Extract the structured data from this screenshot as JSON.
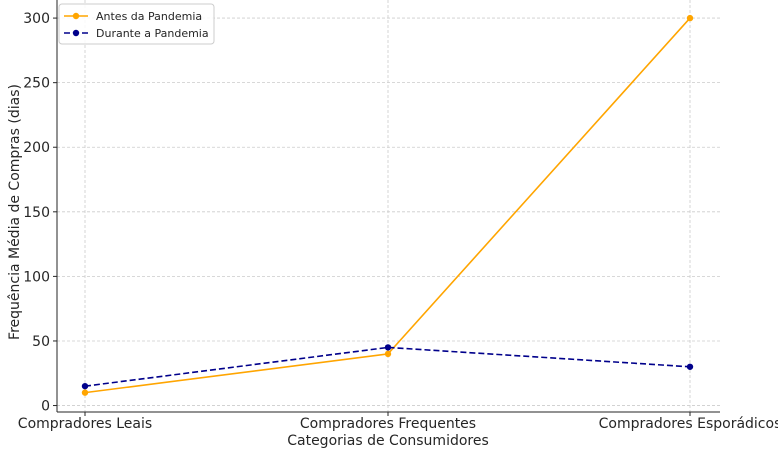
{
  "chart_data": {
    "type": "line",
    "title": "",
    "xlabel": "Categorias de Consumidores",
    "ylabel": "Frequência Média de Compras (dias)",
    "categories": [
      "Compradores Leais",
      "Compradores Frequentes",
      "Compradores Esporádicos"
    ],
    "series": [
      {
        "name": "Antes da Pandemia",
        "values": [
          10,
          40,
          300
        ],
        "color": "#FFA500",
        "line_style": "solid",
        "marker": "circle"
      },
      {
        "name": "Durante a Pandemia",
        "values": [
          15,
          45,
          30
        ],
        "color": "#00008B",
        "line_style": "dashed",
        "marker": "circle"
      }
    ],
    "ylim": [
      -5,
      314
    ],
    "yticks": [
      0,
      50,
      100,
      150,
      200,
      250,
      300
    ],
    "grid": true,
    "legend_position": "top-left"
  }
}
